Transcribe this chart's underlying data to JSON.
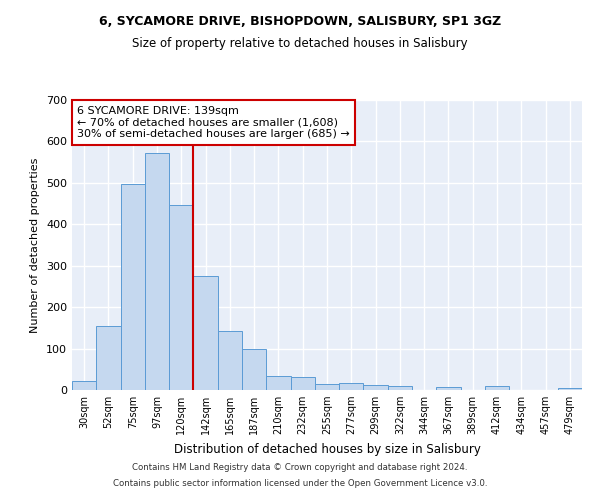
{
  "title1": "6, SYCAMORE DRIVE, BISHOPDOWN, SALISBURY, SP1 3GZ",
  "title2": "Size of property relative to detached houses in Salisbury",
  "xlabel": "Distribution of detached houses by size in Salisbury",
  "ylabel": "Number of detached properties",
  "bar_labels": [
    "30sqm",
    "52sqm",
    "75sqm",
    "97sqm",
    "120sqm",
    "142sqm",
    "165sqm",
    "187sqm",
    "210sqm",
    "232sqm",
    "255sqm",
    "277sqm",
    "299sqm",
    "322sqm",
    "344sqm",
    "367sqm",
    "389sqm",
    "412sqm",
    "434sqm",
    "457sqm",
    "479sqm"
  ],
  "bar_values": [
    22,
    155,
    497,
    573,
    447,
    276,
    143,
    99,
    35,
    32,
    15,
    17,
    12,
    10,
    0,
    7,
    0,
    10,
    0,
    0,
    6
  ],
  "bar_color": "#c5d8ef",
  "bar_edge_color": "#5b9bd5",
  "vline_x": 4.5,
  "vline_color": "#cc0000",
  "annotation_text": "6 SYCAMORE DRIVE: 139sqm\n← 70% of detached houses are smaller (1,608)\n30% of semi-detached houses are larger (685) →",
  "annotation_box_color": "#cc0000",
  "annotation_bg": "#ffffff",
  "ylim": [
    0,
    700
  ],
  "yticks": [
    0,
    100,
    200,
    300,
    400,
    500,
    600,
    700
  ],
  "footer1": "Contains HM Land Registry data © Crown copyright and database right 2024.",
  "footer2": "Contains public sector information licensed under the Open Government Licence v3.0.",
  "fig_bg_color": "#ffffff",
  "plot_bg_color": "#e8eef8",
  "grid_color": "#ffffff"
}
